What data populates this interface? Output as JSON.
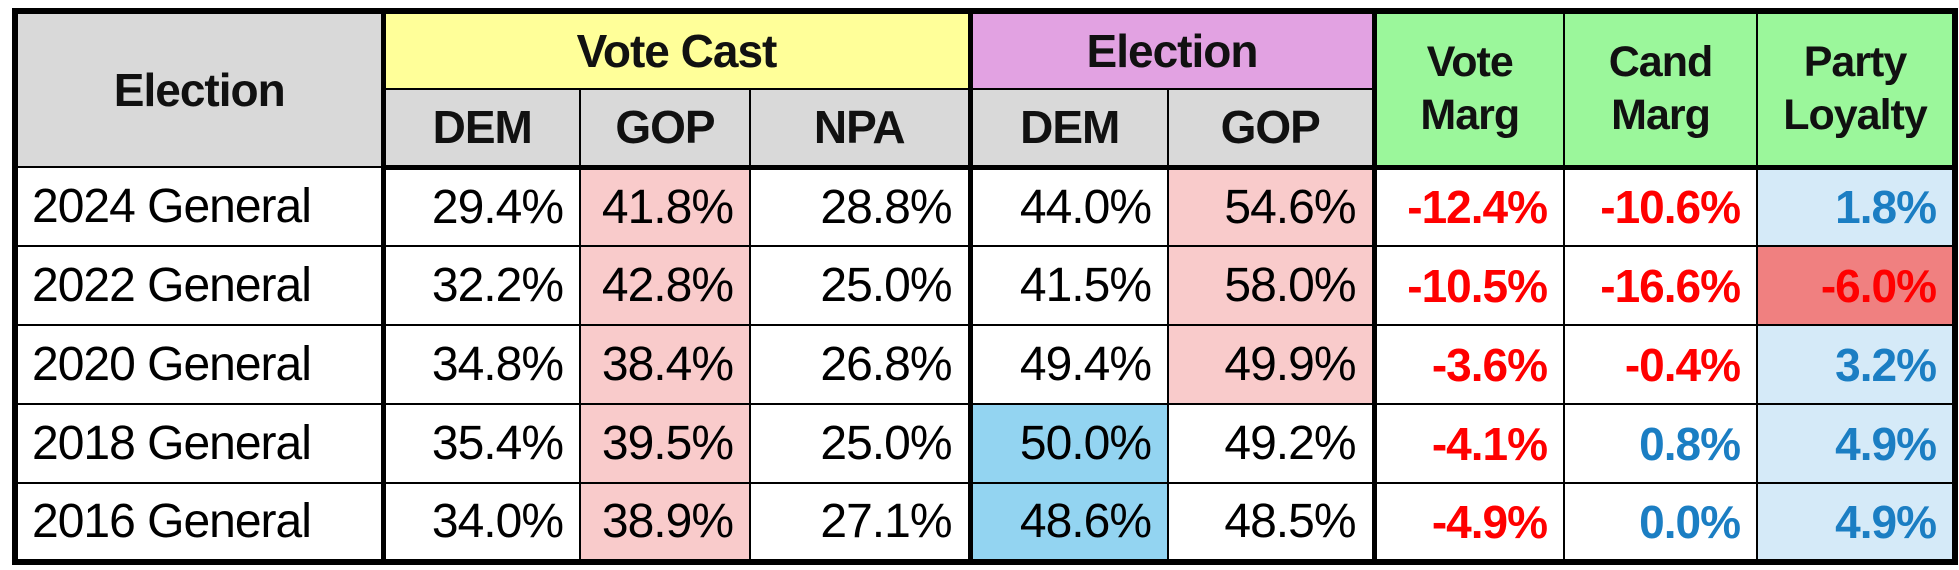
{
  "header": {
    "election_label": "Election",
    "vote_cast": {
      "label": "Vote Cast",
      "cols": [
        "DEM",
        "GOP",
        "NPA"
      ]
    },
    "election_group": {
      "label": "Election",
      "cols": [
        "DEM",
        "GOP"
      ]
    },
    "metrics": [
      {
        "line1": "Vote",
        "line2": "Marg"
      },
      {
        "line1": "Cand",
        "line2": "Marg"
      },
      {
        "line1": "Party",
        "line2": "Loyalty"
      }
    ]
  },
  "rows": [
    {
      "election": "2024 General",
      "cells": [
        {
          "text": "29.4%"
        },
        {
          "text": "41.8%",
          "bg": "pink"
        },
        {
          "text": "28.8%"
        },
        {
          "text": "44.0%"
        },
        {
          "text": "54.6%",
          "bg": "pink"
        },
        {
          "text": "-12.4%",
          "color": "red"
        },
        {
          "text": "-10.6%",
          "color": "red"
        },
        {
          "text": "1.8%",
          "color": "blue",
          "bg": "lightblue"
        }
      ]
    },
    {
      "election": "2022 General",
      "cells": [
        {
          "text": "32.2%"
        },
        {
          "text": "42.8%",
          "bg": "pink"
        },
        {
          "text": "25.0%"
        },
        {
          "text": "41.5%"
        },
        {
          "text": "58.0%",
          "bg": "pink"
        },
        {
          "text": "-10.5%",
          "color": "red"
        },
        {
          "text": "-16.6%",
          "color": "red"
        },
        {
          "text": "-6.0%",
          "color": "red",
          "bg": "salmon"
        }
      ]
    },
    {
      "election": "2020 General",
      "cells": [
        {
          "text": "34.8%"
        },
        {
          "text": "38.4%",
          "bg": "pink"
        },
        {
          "text": "26.8%"
        },
        {
          "text": "49.4%"
        },
        {
          "text": "49.9%",
          "bg": "pink"
        },
        {
          "text": "-3.6%",
          "color": "red"
        },
        {
          "text": "-0.4%",
          "color": "red"
        },
        {
          "text": "3.2%",
          "color": "blue",
          "bg": "lightblue"
        }
      ]
    },
    {
      "election": "2018 General",
      "cells": [
        {
          "text": "35.4%"
        },
        {
          "text": "39.5%",
          "bg": "pink"
        },
        {
          "text": "25.0%"
        },
        {
          "text": "50.0%",
          "bg": "blue"
        },
        {
          "text": "49.2%"
        },
        {
          "text": "-4.1%",
          "color": "red"
        },
        {
          "text": "0.8%",
          "color": "blue"
        },
        {
          "text": "4.9%",
          "color": "blue",
          "bg": "lightblue"
        }
      ]
    },
    {
      "election": "2016 General",
      "cells": [
        {
          "text": "34.0%"
        },
        {
          "text": "38.9%",
          "bg": "pink"
        },
        {
          "text": "27.1%"
        },
        {
          "text": "48.6%",
          "bg": "blue"
        },
        {
          "text": "48.5%"
        },
        {
          "text": "-4.9%",
          "color": "red"
        },
        {
          "text": "0.0%",
          "color": "blue"
        },
        {
          "text": "4.9%",
          "color": "blue",
          "bg": "lightblue"
        }
      ]
    }
  ],
  "column_keys": [
    "vote-cast-dem",
    "vote-cast-gop",
    "vote-cast-npa",
    "election-dem",
    "election-gop",
    "vote-marg",
    "cand-marg",
    "party-loyalty"
  ],
  "colors": {
    "header_gray": "#D9D9D9",
    "yellow": "#FFFF99",
    "plum": "#E2A2E2",
    "green": "#9BF79B",
    "pink_highlight": "#F9CBCB",
    "blue_highlight": "#93D4F1",
    "lightblue_highlight": "#D5EAF8",
    "salmon_highlight": "#F08080",
    "red_text": "#FF0000",
    "blue_text": "#1B7EC3",
    "border": "#000000"
  }
}
